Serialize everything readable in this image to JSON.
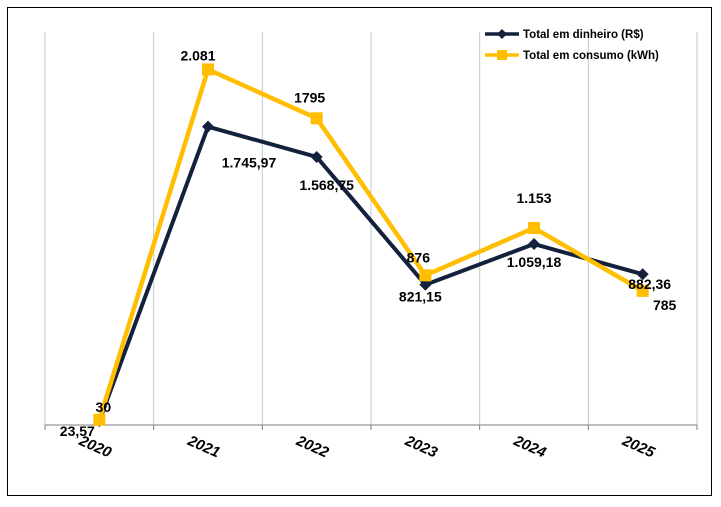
{
  "chart_data": {
    "type": "line",
    "categories": [
      "2020",
      "2021",
      "2022",
      "2023",
      "2024",
      "2025"
    ],
    "series": [
      {
        "name": "Total em dinheiro (R$)",
        "color": "#14213d",
        "marker": "diamond",
        "values": [
          23.57,
          1745.97,
          1568.75,
          821.15,
          1059.18,
          882.36
        ],
        "labels": [
          "23,57",
          "1.745,97",
          "1.568,75",
          "821,15",
          "1.059,18",
          "882,36"
        ]
      },
      {
        "name": "Total em consumo (kWh)",
        "color": "#ffbf00",
        "marker": "square",
        "values": [
          30,
          2081,
          1795,
          876,
          1153,
          785
        ],
        "labels": [
          "30",
          "2.081",
          "1795",
          "876",
          "1.153",
          "785"
        ]
      }
    ],
    "ylim": [
      0,
      2300
    ],
    "grid": "vertical",
    "legend": "top-right",
    "title": "",
    "xlabel": "",
    "ylabel": ""
  }
}
